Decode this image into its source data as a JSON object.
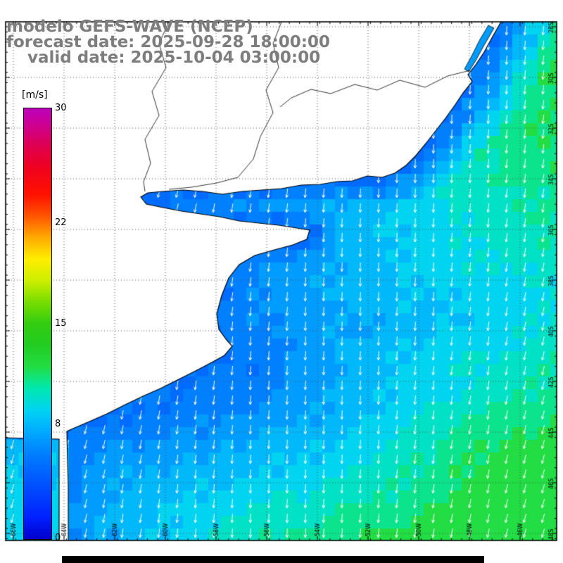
{
  "header": {
    "line1": "modelo GEFS-WAVE (NCEP)",
    "line2": "forecast date: 2025-09-28 18:00:00",
    "line3": "valid date: 2025-10-04 03:00:00",
    "color": "#7d7d7d"
  },
  "colorbar": {
    "unit_label": "[m/s]",
    "min": 0,
    "max": 30,
    "tick_labels": [
      "30",
      "22",
      "15",
      "8",
      "0"
    ],
    "stops": [
      [
        0,
        "#0000cc"
      ],
      [
        1.5,
        "#0020ff"
      ],
      [
        4,
        "#0055ff"
      ],
      [
        6,
        "#0080ff"
      ],
      [
        7.5,
        "#00aaff"
      ],
      [
        9,
        "#00d4f0"
      ],
      [
        10.5,
        "#00e8b0"
      ],
      [
        12,
        "#22dd44"
      ],
      [
        13.5,
        "#22cc22"
      ],
      [
        15,
        "#33cc11"
      ],
      [
        16.5,
        "#77dd00"
      ],
      [
        18,
        "#ccee00"
      ],
      [
        19.5,
        "#ffee00"
      ],
      [
        21,
        "#ffaa00"
      ],
      [
        22.5,
        "#ff5500"
      ],
      [
        24,
        "#ff1100"
      ],
      [
        26,
        "#ee0022"
      ],
      [
        27.5,
        "#dd0055"
      ],
      [
        29,
        "#cc0099"
      ],
      [
        30,
        "#bb00bb"
      ]
    ]
  },
  "map": {
    "lon_labels": [
      "66W",
      "64W",
      "62W",
      "60W",
      "58W",
      "56W",
      "54W",
      "52W",
      "50W",
      "48W",
      "46W"
    ],
    "lat_labels": [
      "28S",
      "30S",
      "32S",
      "34S",
      "36S",
      "38S",
      "40S",
      "42S",
      "44S",
      "46S",
      "48S"
    ],
    "arrow_color": "#ffffff",
    "land_color": "#ffffff",
    "coast_color": "#000000",
    "grid_color": "#555555",
    "frame_color": "#000000"
  },
  "chart_data": {
    "type": "heatmap",
    "title": "modelo GEFS-WAVE (NCEP)",
    "variable": "wind speed with direction vectors",
    "units": "m/s",
    "scale_range": [
      0,
      30
    ],
    "scale_ticks": [
      0,
      8,
      15,
      22,
      30
    ],
    "observed_speed_range_ms": [
      5,
      12
    ],
    "near_coast_speed_ms": 5,
    "mid_ocean_speed_ms": 8,
    "offshore_speed_ms": 12,
    "vector_overlay": "white arrows pointing southward",
    "region": "southwest Atlantic off Argentina, Uruguay and Rio de la Plata"
  },
  "footer": {
    "bar_color": "#000000"
  }
}
